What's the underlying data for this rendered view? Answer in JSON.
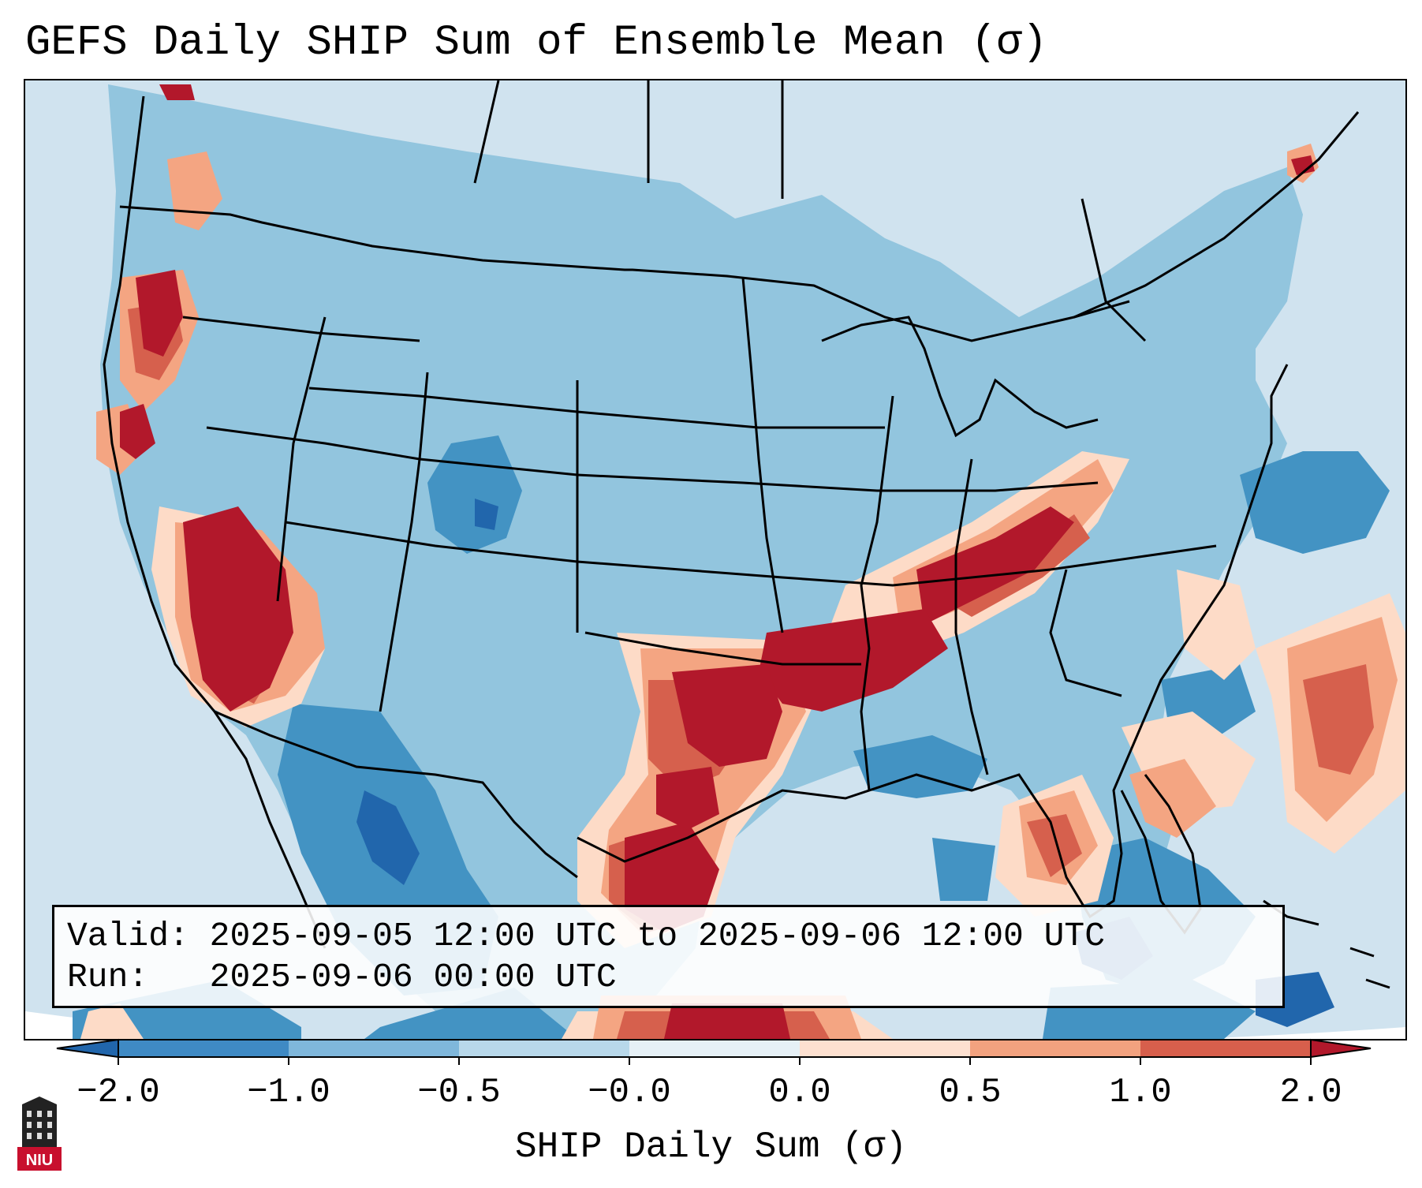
{
  "title": "GEFS Daily SHIP Sum of Ensemble Mean (σ)",
  "info": {
    "valid_label": "Valid:",
    "valid_value": "2025-09-05 12:00 UTC to 2025-09-06 12:00 UTC",
    "run_label": "Run:",
    "run_value": "2025-09-06 00:00 UTC"
  },
  "colorbar": {
    "label": "SHIP Daily Sum (σ)",
    "ticks": [
      "−2.0",
      "−1.0",
      "−0.5",
      "−0.0",
      "0.0",
      "0.5",
      "1.0",
      "2.0"
    ],
    "colors": [
      "#3f8ac4",
      "#7fb7db",
      "#b8d8ea",
      "#e6f0f6",
      "#fde0d0",
      "#f2a27f",
      "#d75f4c",
      "#b2182b"
    ],
    "extend_low_color": "#2166ac",
    "extend_high_color": "#b2182b"
  },
  "map": {
    "colors": {
      "ocean_base": "#d0e3ef",
      "land_base": "#92c5de",
      "strong_neg": "#4393c3",
      "very_strong_neg": "#2166ac",
      "light_pos": "#fddbc7",
      "mid_pos": "#f4a582",
      "strong_pos": "#d6604d",
      "very_strong_pos": "#b2182b"
    }
  },
  "logo": {
    "text": "NIU",
    "icon": "niu-logo-icon"
  }
}
